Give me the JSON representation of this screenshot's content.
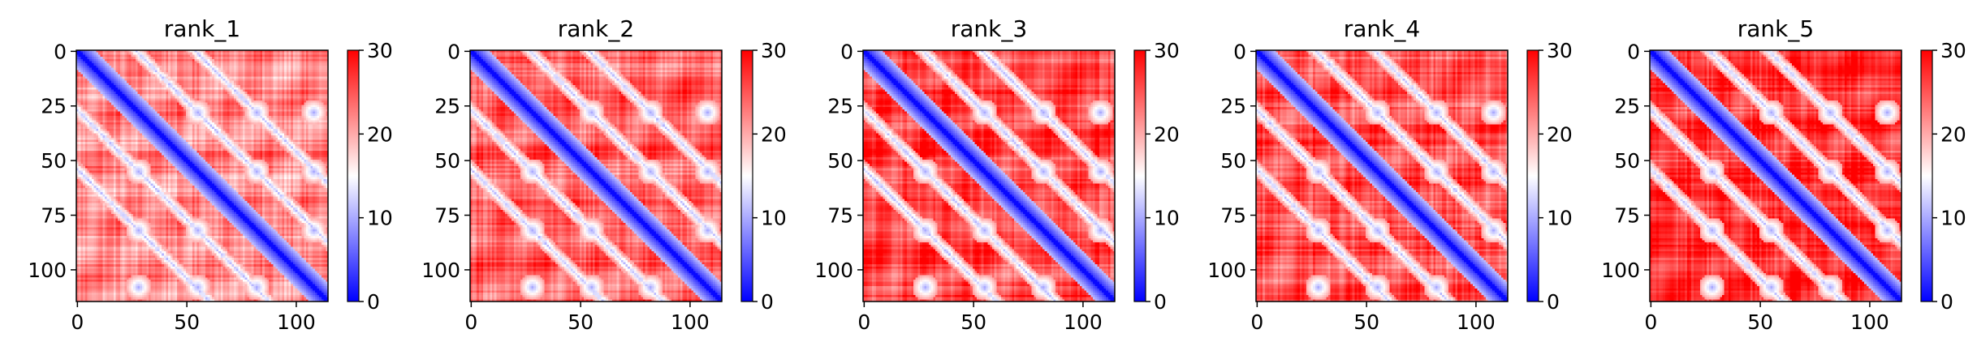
{
  "colors": {
    "low": "#0000ff",
    "mid": "#ffffff",
    "high": "#ff0000",
    "axis": "#000000"
  },
  "chart_data": [
    {
      "type": "heatmap",
      "title": "rank_1",
      "colormap": "bwr",
      "matrix_size": 115,
      "vmin": 0,
      "vmax": 30,
      "xticks": [
        "0",
        "50",
        "100"
      ],
      "xtick_values": [
        0,
        50,
        100
      ],
      "yticks": [
        "0",
        "25",
        "50",
        "75",
        "100"
      ],
      "ytick_values": [
        0,
        25,
        50,
        75,
        100
      ],
      "colorbar_ticks": [
        "0",
        "10",
        "20",
        "30"
      ],
      "colorbar_tick_values": [
        0,
        10,
        20,
        30
      ],
      "off_diagonal_level": 22,
      "diagonal_contacts": [
        28,
        55,
        82,
        108
      ]
    },
    {
      "type": "heatmap",
      "title": "rank_2",
      "colormap": "bwr",
      "matrix_size": 115,
      "vmin": 0,
      "vmax": 30,
      "xticks": [
        "0",
        "50",
        "100"
      ],
      "xtick_values": [
        0,
        50,
        100
      ],
      "yticks": [
        "0",
        "25",
        "50",
        "75",
        "100"
      ],
      "ytick_values": [
        0,
        25,
        50,
        75,
        100
      ],
      "colorbar_ticks": [
        "0",
        "10",
        "20",
        "30"
      ],
      "colorbar_tick_values": [
        0,
        10,
        20,
        30
      ],
      "off_diagonal_level": 24,
      "diagonal_contacts": [
        28,
        55,
        82,
        108
      ]
    },
    {
      "type": "heatmap",
      "title": "rank_3",
      "colormap": "bwr",
      "matrix_size": 115,
      "vmin": 0,
      "vmax": 30,
      "xticks": [
        "0",
        "50",
        "100"
      ],
      "xtick_values": [
        0,
        50,
        100
      ],
      "yticks": [
        "0",
        "25",
        "50",
        "75",
        "100"
      ],
      "ytick_values": [
        0,
        25,
        50,
        75,
        100
      ],
      "colorbar_ticks": [
        "0",
        "10",
        "20",
        "30"
      ],
      "colorbar_tick_values": [
        0,
        10,
        20,
        30
      ],
      "off_diagonal_level": 26,
      "diagonal_contacts": [
        28,
        55,
        82,
        108
      ]
    },
    {
      "type": "heatmap",
      "title": "rank_4",
      "colormap": "bwr",
      "matrix_size": 115,
      "vmin": 0,
      "vmax": 30,
      "xticks": [
        "0",
        "50",
        "100"
      ],
      "xtick_values": [
        0,
        50,
        100
      ],
      "yticks": [
        "0",
        "25",
        "50",
        "75",
        "100"
      ],
      "ytick_values": [
        0,
        25,
        50,
        75,
        100
      ],
      "colorbar_ticks": [
        "0",
        "10",
        "20",
        "30"
      ],
      "colorbar_tick_values": [
        0,
        10,
        20,
        30
      ],
      "off_diagonal_level": 25,
      "diagonal_contacts": [
        28,
        55,
        82,
        108
      ]
    },
    {
      "type": "heatmap",
      "title": "rank_5",
      "colormap": "bwr",
      "matrix_size": 115,
      "vmin": 0,
      "vmax": 30,
      "xticks": [
        "0",
        "50",
        "100"
      ],
      "xtick_values": [
        0,
        50,
        100
      ],
      "yticks": [
        "0",
        "25",
        "50",
        "75",
        "100"
      ],
      "ytick_values": [
        0,
        25,
        50,
        75,
        100
      ],
      "colorbar_ticks": [
        "0",
        "10",
        "20",
        "30"
      ],
      "colorbar_tick_values": [
        0,
        10,
        20,
        30
      ],
      "off_diagonal_level": 27,
      "diagonal_contacts": [
        28,
        55,
        82,
        108
      ]
    }
  ]
}
